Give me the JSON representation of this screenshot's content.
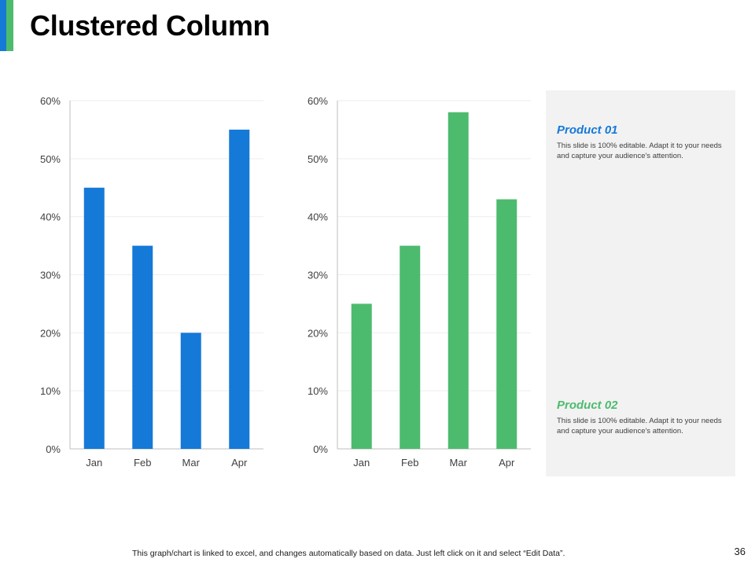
{
  "page": {
    "title": "Clustered Column",
    "footer": "This graph/chart is linked to excel, and changes automatically based on data. Just left click on it and select “Edit Data”.",
    "page_number": "36"
  },
  "colors": {
    "blue": "#1579d8",
    "green": "#4dbb6e",
    "accent_blue": "#1579d8",
    "accent_green": "#4dbb6e",
    "axis": "#bfbfbf",
    "grid": "#eeeeee"
  },
  "panel": {
    "products": [
      {
        "title": "Product 01",
        "text": "This slide is 100% editable.  Adapt it to your needs and capture your audience's attention."
      },
      {
        "title": "Product 02",
        "text": "This slide is 100% editable.  Adapt it to your needs and capture your audience's attention."
      }
    ]
  },
  "chart_data": [
    {
      "type": "bar",
      "series_name": "Product 01",
      "categories": [
        "Jan",
        "Feb",
        "Mar",
        "Apr"
      ],
      "values": [
        45,
        35,
        20,
        55
      ],
      "ylim": [
        0,
        60
      ],
      "yticks": [
        0,
        10,
        20,
        30,
        40,
        50,
        60
      ],
      "ytick_labels": [
        "0%",
        "10%",
        "20%",
        "30%",
        "40%",
        "50%",
        "60%"
      ],
      "grid": true,
      "color": "#1579d8"
    },
    {
      "type": "bar",
      "series_name": "Product 02",
      "categories": [
        "Jan",
        "Feb",
        "Mar",
        "Apr"
      ],
      "values": [
        25,
        35,
        58,
        43
      ],
      "ylim": [
        0,
        60
      ],
      "yticks": [
        0,
        10,
        20,
        30,
        40,
        50,
        60
      ],
      "ytick_labels": [
        "0%",
        "10%",
        "20%",
        "30%",
        "40%",
        "50%",
        "60%"
      ],
      "grid": true,
      "color": "#4dbb6e"
    }
  ]
}
